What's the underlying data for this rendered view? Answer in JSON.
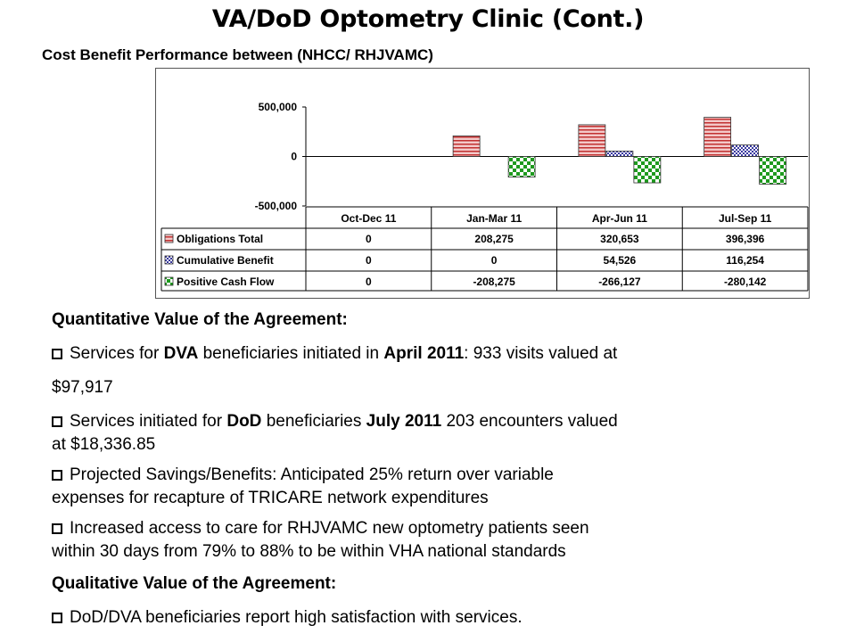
{
  "slide": {
    "title": "VA/DoD Optometry Clinic (Cont.)",
    "subtitle": "Cost Benefit Performance between (NHCC/ RHJVAMC)"
  },
  "colors": {
    "obligations": "#cc3333",
    "cumulative": "#3333aa",
    "cashflow": "#22aa22"
  },
  "chart_data": {
    "type": "bar",
    "categories": [
      "Oct-Dec 11",
      "Jan-Mar 11",
      "Apr-Jun 11",
      "Jul-Sep 11"
    ],
    "ylim": [
      -500000,
      500000
    ],
    "yticks": [
      "500,000",
      "0",
      "-500,000"
    ],
    "series": [
      {
        "name": "Obligations Total",
        "values": [
          0,
          208275,
          320653,
          396396
        ],
        "labels": [
          "0",
          "208,275",
          "320,653",
          "396,396"
        ]
      },
      {
        "name": "Cumulative Benefit",
        "values": [
          0,
          0,
          54526,
          116254
        ],
        "labels": [
          "0",
          "0",
          "54,526",
          "116,254"
        ]
      },
      {
        "name": "Positive Cash Flow",
        "values": [
          0,
          -208275,
          -266127,
          -280142
        ],
        "labels": [
          "0",
          "-208,275",
          "-266,127",
          "-280,142"
        ]
      }
    ],
    "grid": false,
    "legend": "data-table"
  },
  "content": {
    "heading1": "Quantitative Value of the Agreement:",
    "b1": {
      "t1": "Services for ",
      "t2": "DVA",
      "t3": " beneficiaries initiated in ",
      "t4": "April 2011",
      "t5": ": 933 visits valued at",
      "t6": "$97,917"
    },
    "b2": {
      "t1": "Services initiated for ",
      "t2": "DoD",
      "t3": " beneficiaries ",
      "t4": "July 2011",
      "t5": " 203 encounters valued",
      "t6": "at $18,336.85"
    },
    "b3": {
      "t1": "Projected Savings/Benefits:  Anticipated 25% return over variable",
      "t2": "expenses for recapture of TRICARE network expenditures"
    },
    "b4": {
      "t1": "Increased access to care for RHJVAMC new optometry patients seen",
      "t2": "within 30 days from 79% to 88% to be within  VHA national standards"
    },
    "heading2": "Qualitative Value of the Agreement:",
    "b5": {
      "t1": "DoD/DVA beneficiaries report high satisfaction with services."
    }
  }
}
